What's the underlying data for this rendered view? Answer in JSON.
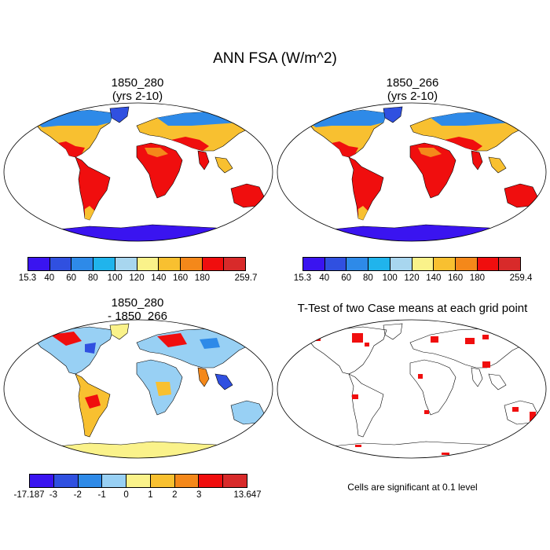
{
  "main_title": "ANN FSA (W/m^2)",
  "panels": {
    "case1": {
      "title": "1850_280",
      "subtitle": "(yrs 2-10)"
    },
    "case2": {
      "title": "1850_266",
      "subtitle": "(yrs 2-10)"
    },
    "diff": {
      "title": "1850_280",
      "subtitle": "- 1850_266"
    },
    "ttest": {
      "title": "T-Test of two Case means at each grid point"
    }
  },
  "colorbar_main": {
    "colors": [
      "#3a14f0",
      "#3050e0",
      "#2e8ae8",
      "#20b4ec",
      "#a8d6ef",
      "#faf28a",
      "#f8c030",
      "#f4881a",
      "#f00e0e",
      "#d82a2a"
    ],
    "labels_case1": [
      "15.3",
      "40",
      "60",
      "80",
      "100",
      "120",
      "140",
      "160",
      "180",
      "259.7"
    ],
    "labels_case2": [
      "15.3",
      "40",
      "60",
      "80",
      "100",
      "120",
      "140",
      "160",
      "180",
      "259.4"
    ]
  },
  "colorbar_diff": {
    "colors": [
      "#3a14f0",
      "#3050e0",
      "#2e8ae8",
      "#98d0f4",
      "#faf28a",
      "#f8c030",
      "#f4881a",
      "#f00e0e",
      "#d82a2a"
    ],
    "labels": [
      "-17.187",
      "-3",
      "-2",
      "-1",
      "0",
      "1",
      "2",
      "3",
      "13.647"
    ]
  },
  "significance_note": "Cells are significant at 0.1 level"
}
